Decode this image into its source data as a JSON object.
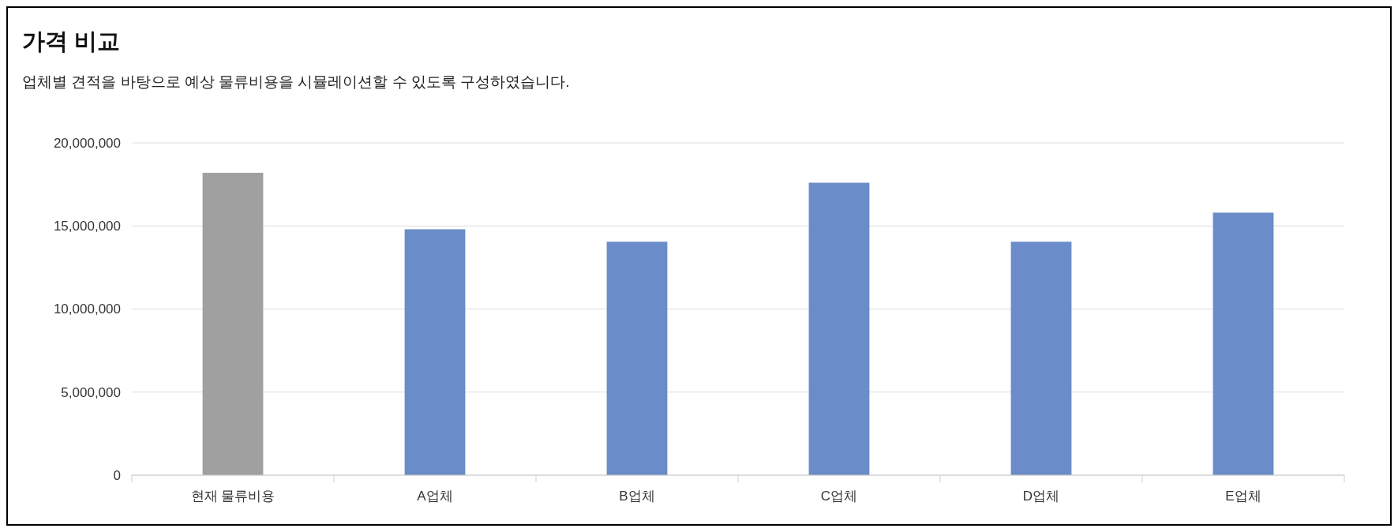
{
  "chart_data": {
    "type": "bar",
    "title": "가격 비교",
    "subtitle": "업체별 견적을 바탕으로 예상 물류비용을 시뮬레이션할 수 있도록 구성하였습니다.",
    "categories": [
      "현재 물류비용",
      "A업체",
      "B업체",
      "C업체",
      "D업체",
      "E업체"
    ],
    "values": [
      18200000,
      14800000,
      14050000,
      17600000,
      14050000,
      15800000
    ],
    "colors": [
      "#a0a0a0",
      "#6a8cc8",
      "#6a8cc8",
      "#6a8cc8",
      "#6a8cc8",
      "#6a8cc8"
    ],
    "ylim": [
      0,
      20000000
    ],
    "yticks": [
      {
        "value": 0,
        "label": "0"
      },
      {
        "value": 5000000,
        "label": "5,000,000"
      },
      {
        "value": 10000000,
        "label": "10,000,000"
      },
      {
        "value": 15000000,
        "label": "15,000,000"
      },
      {
        "value": 20000000,
        "label": "20,000,000"
      }
    ],
    "grid": "y"
  }
}
